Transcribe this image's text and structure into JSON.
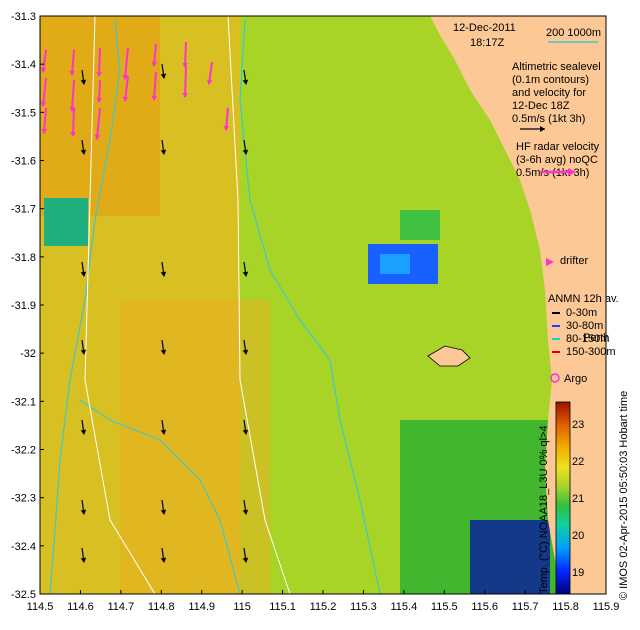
{
  "header": {
    "date": "12-Dec-2011",
    "time": "18:17Z"
  },
  "scale": {
    "label": "200  1000m",
    "color": "#40c8c8"
  },
  "altimetry": {
    "lines": [
      "Altimetric sealevel",
      "(0.1m contours)",
      "and velocity for",
      "12-Dec 18Z",
      "0.5m/s (1kt 3h)"
    ]
  },
  "hf_radar": {
    "lines": [
      "HF radar velocity",
      "(3-6h avg) noQC",
      "0.5m/s (1kt 3h)"
    ],
    "color": "#ff33cc"
  },
  "drifter": {
    "label": "drifter",
    "color": "#ff33cc"
  },
  "anmn": {
    "title": "ANMN 12h av.",
    "items": [
      {
        "label": "0-30m",
        "color": "#000000"
      },
      {
        "label": "30-80m",
        "color": "#1f3fff"
      },
      {
        "label": "80-150m",
        "color": "#19d0d0"
      },
      {
        "label": "150-300m",
        "color": "#e00000"
      }
    ]
  },
  "place": {
    "label": "Perth"
  },
  "argo": {
    "label": "Argo",
    "color": "#ff33cc"
  },
  "colorbar": {
    "title": "Temp. (°C) NOAA18_L3U 0% ql>4",
    "ticks": [
      "23",
      "22",
      "21",
      "20",
      "19"
    ],
    "range": [
      18.4,
      23.6
    ]
  },
  "credit": "© IMOS 02-Apr-2015 05:50:03 Hobart time",
  "axes": {
    "xticks": [
      "114.5",
      "114.6",
      "114.7",
      "114.8",
      "114.9",
      "115",
      "115.1",
      "115.2",
      "115.3",
      "115.4",
      "115.5",
      "115.6",
      "115.7",
      "115.8",
      "115.9"
    ],
    "yticks": [
      "-31.3",
      "-31.4",
      "-31.5",
      "-31.6",
      "-31.7",
      "-31.8",
      "-31.9",
      "-32",
      "-32.1",
      "-32.2",
      "-32.3",
      "-32.4",
      "-32.5"
    ],
    "xlim": [
      114.5,
      115.9
    ],
    "ylim": [
      -32.5,
      -31.3
    ]
  },
  "colors": {
    "land": "#fcc896",
    "sst_mid": "#a8d428",
    "sst_warm": "#e8a800",
    "contour": "#40c8c8"
  }
}
